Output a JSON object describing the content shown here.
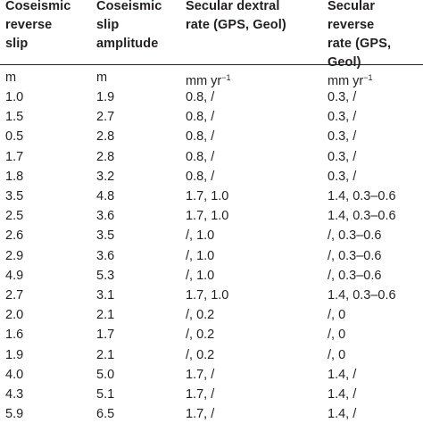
{
  "table": {
    "headers": [
      "Coseismic\nreverse\nslip",
      "Coseismic\nslip\namplitude",
      "Secular dextral\nrate (GPS, Geol)",
      "Secular reverse\nrate (GPS, Geol)"
    ],
    "units": [
      "m",
      "m",
      "mm yr",
      "mm yr"
    ],
    "unit_exponent": "−1",
    "rows": [
      [
        "1.0",
        "1.9",
        "0.8, /",
        "0.3, /"
      ],
      [
        "1.5",
        "2.7",
        "0.8, /",
        "0.3, /"
      ],
      [
        "0.5",
        "2.8",
        "0.8, /",
        "0.3, /"
      ],
      [
        "1.7",
        "2.8",
        "0.8, /",
        "0.3, /"
      ],
      [
        "1.8",
        "3.2",
        "0.8, /",
        "0.3, /"
      ],
      [
        "3.5",
        "4.8",
        "1.7, 1.0",
        "1.4, 0.3–0.6"
      ],
      [
        "2.5",
        "3.6",
        "1.7, 1.0",
        "1.4, 0.3–0.6"
      ],
      [
        "2.6",
        "3.5",
        "/, 1.0",
        "/, 0.3–0.6"
      ],
      [
        "2.9",
        "3.6",
        "/, 1.0",
        "/, 0.3–0.6"
      ],
      [
        "4.9",
        "5.3",
        "/, 1.0",
        "/, 0.3–0.6"
      ],
      [
        "2.7",
        "3.1",
        "1.7, 1.0",
        "1.4, 0.3–0.6"
      ],
      [
        "2.0",
        "2.1",
        "/, 0.2",
        "/, 0"
      ],
      [
        "1.6",
        "1.7",
        "/, 0.2",
        "/, 0"
      ],
      [
        "1.9",
        "2.1",
        "/, 0.2",
        "/, 0"
      ],
      [
        "4.0",
        "5.0",
        "1.7, /",
        "1.4, /"
      ],
      [
        "4.3",
        "5.1",
        "1.7, /",
        "1.4, /"
      ],
      [
        "5.9",
        "6.5",
        "1.7, /",
        "1.4, /"
      ]
    ]
  }
}
